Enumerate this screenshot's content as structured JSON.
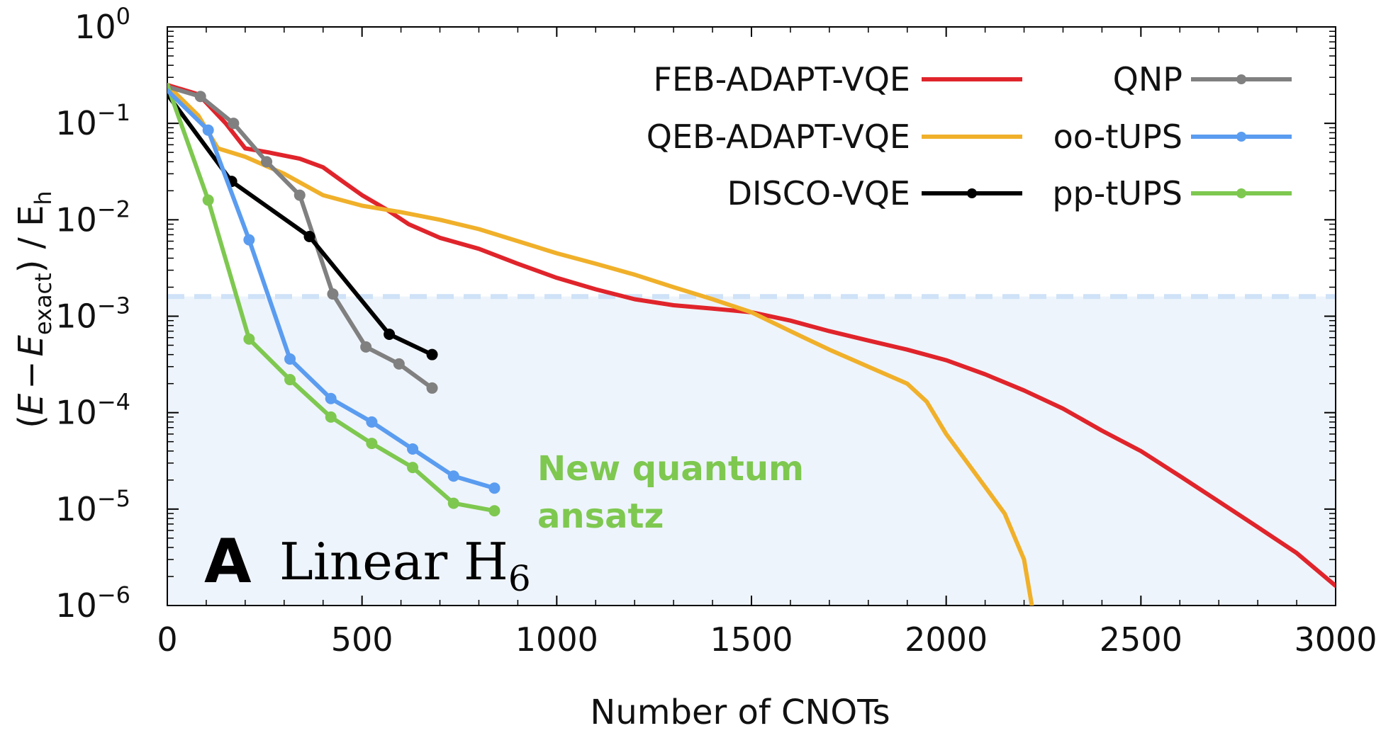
{
  "chart_data": {
    "type": "line",
    "panel_label": "A",
    "panel_title": {
      "main": "Linear H",
      "subscript": "6"
    },
    "xlabel": "Number of CNOTs",
    "ylabel": {
      "prefix": "(",
      "e": "E",
      "minus": "−",
      "e2": "E",
      "sub": "exact",
      "suffix": ") / E",
      "unit_sub": "h"
    },
    "xlim": [
      0,
      3000
    ],
    "ylim": [
      1e-06,
      1
    ],
    "yscale": "log",
    "x_ticks": [
      "0",
      "500",
      "1000",
      "1500",
      "2000",
      "2500",
      "3000"
    ],
    "y_ticks": [
      {
        "base": "10",
        "exp": "0"
      },
      {
        "base": "10",
        "exp": "−1"
      },
      {
        "base": "10",
        "exp": "−2"
      },
      {
        "base": "10",
        "exp": "−3"
      },
      {
        "base": "10",
        "exp": "−4"
      },
      {
        "base": "10",
        "exp": "−5"
      },
      {
        "base": "10",
        "exp": "−6"
      }
    ],
    "chemical_accuracy": 0.0016,
    "shade_color": "#eef4fb",
    "threshold_color": "#cfe2f7",
    "legend_placement": "top-right",
    "annotation": {
      "lines": [
        "New quantum",
        "ansatz"
      ],
      "color": "#7ec850"
    },
    "series": [
      {
        "name": "FEB-ADAPT-VQE",
        "color": "#e0242b",
        "markers": false,
        "x": [
          0,
          80,
          150,
          200,
          260,
          340,
          400,
          450,
          500,
          560,
          620,
          700,
          800,
          900,
          1000,
          1100,
          1200,
          1300,
          1400,
          1500,
          1600,
          1700,
          1800,
          1900,
          2000,
          2100,
          2200,
          2300,
          2400,
          2500,
          2600,
          2700,
          2800,
          2900,
          3000
        ],
        "y": [
          0.25,
          0.2,
          0.1,
          0.055,
          0.05,
          0.043,
          0.035,
          0.025,
          0.018,
          0.013,
          0.009,
          0.0065,
          0.005,
          0.0035,
          0.0025,
          0.0019,
          0.0015,
          0.0013,
          0.0012,
          0.0011,
          0.0009,
          0.0007,
          0.00056,
          0.00045,
          0.00035,
          0.00025,
          0.00017,
          0.00011,
          6.5e-05,
          4e-05,
          2.2e-05,
          1.2e-05,
          6.5e-06,
          3.5e-06,
          1.6e-06
        ]
      },
      {
        "name": "QEB-ADAPT-VQE",
        "color": "#f0b02a",
        "markers": false,
        "x": [
          0,
          80,
          130,
          200,
          300,
          400,
          500,
          600,
          700,
          800,
          900,
          1000,
          1100,
          1200,
          1300,
          1400,
          1500,
          1600,
          1700,
          1800,
          1900,
          1950,
          2000,
          2050,
          2100,
          2150,
          2200,
          2220
        ],
        "y": [
          0.25,
          0.12,
          0.055,
          0.045,
          0.03,
          0.018,
          0.014,
          0.012,
          0.01,
          0.008,
          0.006,
          0.0045,
          0.0035,
          0.0027,
          0.002,
          0.0015,
          0.0011,
          0.0007,
          0.00045,
          0.0003,
          0.0002,
          0.00013,
          6e-05,
          3.2e-05,
          1.7e-05,
          9e-06,
          3e-06,
          1e-06
        ]
      },
      {
        "name": "DISCO-VQE",
        "color": "#000000",
        "markers": true,
        "x": [
          0,
          165,
          365,
          570,
          680
        ],
        "y": [
          0.2,
          0.025,
          0.0067,
          0.00065,
          0.0004
        ]
      },
      {
        "name": "QNP",
        "color": "#808080",
        "markers": true,
        "x": [
          0,
          85,
          170,
          255,
          340,
          425,
          510,
          595,
          680
        ],
        "y": [
          0.24,
          0.19,
          0.1,
          0.04,
          0.018,
          0.0017,
          0.00048,
          0.00032,
          0.00018
        ]
      },
      {
        "name": "oo-tUPS",
        "color": "#5a9cf0",
        "markers": true,
        "x": [
          0,
          105,
          210,
          315,
          420,
          525,
          630,
          735,
          840
        ],
        "y": [
          0.22,
          0.085,
          0.0062,
          0.00036,
          0.00014,
          8e-05,
          4.2e-05,
          2.2e-05,
          1.65e-05
        ]
      },
      {
        "name": "pp-tUPS",
        "color": "#7ec850",
        "markers": true,
        "x": [
          0,
          105,
          210,
          315,
          420,
          525,
          630,
          735,
          840
        ],
        "y": [
          0.25,
          0.016,
          0.00058,
          0.00022,
          9e-05,
          4.8e-05,
          2.7e-05,
          1.15e-05,
          9.6e-06
        ]
      }
    ]
  }
}
